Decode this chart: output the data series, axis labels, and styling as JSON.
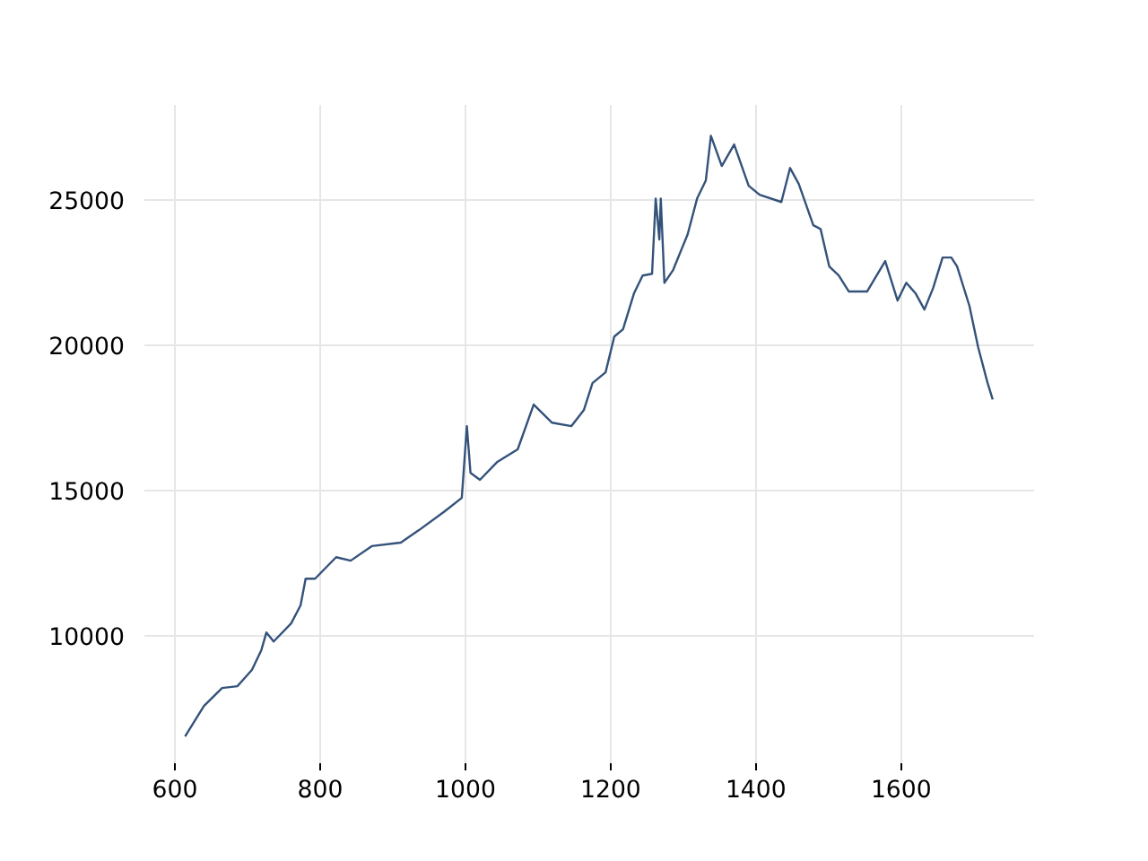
{
  "chart_data": {
    "type": "line",
    "xlim": [
      558,
      1783
    ],
    "ylim": [
      5620,
      28270
    ],
    "xticks": [
      600,
      800,
      1000,
      1200,
      1400,
      1600
    ],
    "yticks": [
      10000,
      15000,
      20000,
      25000
    ],
    "grid": true,
    "series": [
      {
        "color": "#34527a",
        "x": [
          614,
          640,
          665,
          686,
          706,
          719,
          726,
          736,
          760,
          773,
          780,
          793,
          822,
          842,
          871,
          911,
          936,
          970,
          995,
          1002,
          1007,
          1020,
          1044,
          1072,
          1094,
          1119,
          1146,
          1163,
          1175,
          1193,
          1205,
          1217,
          1232,
          1244,
          1257,
          1262,
          1267,
          1269,
          1274,
          1286,
          1306,
          1319,
          1331,
          1338,
          1353,
          1370,
          1390,
          1405,
          1435,
          1447,
          1459,
          1479,
          1489,
          1501,
          1514,
          1528,
          1553,
          1578,
          1595,
          1607,
          1620,
          1632,
          1644,
          1657,
          1669,
          1677,
          1694,
          1706,
          1719,
          1726
        ],
        "values": [
          6540,
          7590,
          8210,
          8270,
          8830,
          9510,
          10120,
          9810,
          10430,
          11050,
          11970,
          11970,
          12710,
          12590,
          13090,
          13210,
          13640,
          14260,
          14750,
          17220,
          15610,
          15370,
          15990,
          16420,
          17960,
          17340,
          17220,
          17770,
          18700,
          19070,
          20300,
          20550,
          21780,
          22400,
          22460,
          25050,
          23640,
          25050,
          22150,
          22590,
          23820,
          25050,
          25670,
          27210,
          26170,
          26910,
          25490,
          25180,
          24930,
          26100,
          25550,
          24130,
          24000,
          22710,
          22400,
          21850,
          21850,
          22900,
          21540,
          22150,
          21780,
          21230,
          21970,
          23020,
          23020,
          22710,
          21350,
          19930,
          18700,
          18140
        ]
      }
    ]
  }
}
